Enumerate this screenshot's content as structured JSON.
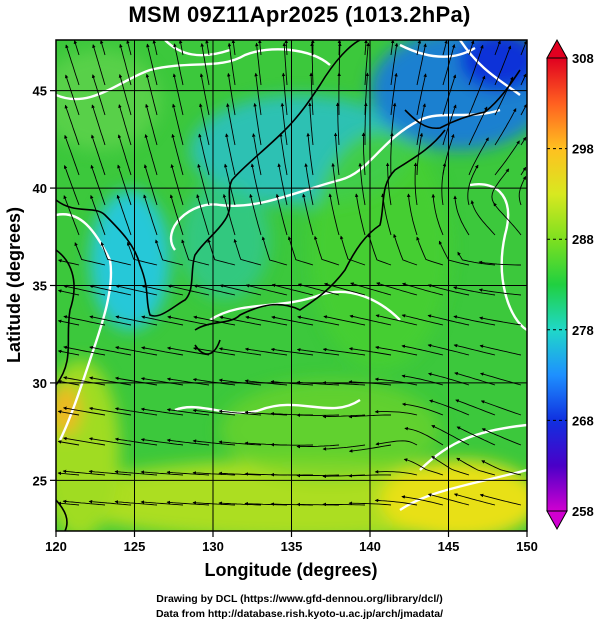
{
  "title": "MSM 09Z11Apr2025 (1013.2hPa)",
  "axes": {
    "xlabel": "Longitude (degrees)",
    "ylabel": "Latitude  (degrees)",
    "xlim": [
      120,
      150
    ],
    "ylim": [
      22.4,
      47.6
    ],
    "xticks": [
      "120",
      "125",
      "130",
      "135",
      "140",
      "145",
      "150"
    ],
    "yticks": [
      "25",
      "30",
      "35",
      "40",
      "45"
    ]
  },
  "colorbar": {
    "ticks": [
      "258",
      "268",
      "278",
      "288",
      "298",
      "308"
    ],
    "range": [
      258,
      308
    ]
  },
  "credits": [
    "Drawing by DCL (https://www.gfd-dennou.org/library/dcl/)",
    "Data from http://database.rish.kyoto-u.ac.jp/arch/jmadata/"
  ],
  "colors": {
    "grid": "#000000",
    "streamline": "#000000",
    "contour": "#ffffff",
    "coast": "#000000"
  }
}
